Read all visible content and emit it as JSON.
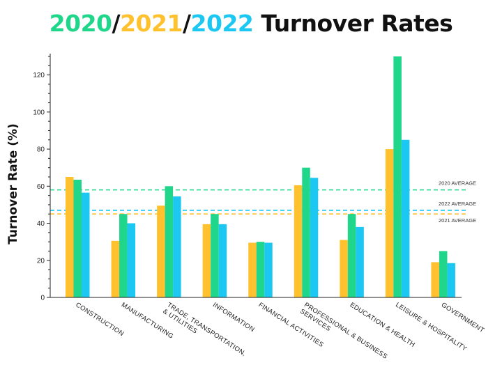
{
  "title": {
    "years": [
      {
        "text": "2020",
        "color": "#1FD68A"
      },
      {
        "text": "/",
        "color": "#111111"
      },
      {
        "text": "2021",
        "color": "#FFC12E"
      },
      {
        "text": "/",
        "color": "#111111"
      },
      {
        "text": "2022",
        "color": "#1CC8F2"
      }
    ],
    "rest": " Turnover Rates",
    "rest_color": "#111111"
  },
  "chart_data": {
    "type": "bar",
    "title": "2020/2021/2022 Turnover Rates",
    "ylabel": "Turnover Rate (%)",
    "xlabel": "",
    "ylim": [
      0,
      130
    ],
    "yticks": [
      0,
      20,
      40,
      60,
      80,
      100,
      120
    ],
    "grid": false,
    "legend": "none",
    "categories": [
      [
        "CONSTRUCTION"
      ],
      [
        "MANUFACTURING"
      ],
      [
        "TRADE, TRANSPORTATION,",
        "& UTILITIES"
      ],
      [
        "INFORMATION"
      ],
      [
        "FINANCIAL ACTIVITIES"
      ],
      [
        "PROFESSIONAL & BUSINESS",
        "SERVICES"
      ],
      [
        "EDUCATION & HEALTH"
      ],
      [
        "LEISURE & HOSPITALITY"
      ],
      [
        "GOVERNMENT"
      ]
    ],
    "series": [
      {
        "color": "#FFC12E",
        "values": [
          65,
          30.5,
          49.5,
          39.5,
          29.5,
          60.5,
          31,
          80,
          19
        ]
      },
      {
        "color": "#1FD68A",
        "values": [
          63.5,
          45,
          60,
          45,
          30,
          70,
          45,
          130,
          25
        ]
      },
      {
        "color": "#1CC8F2",
        "values": [
          56.5,
          40,
          54.5,
          39.5,
          29.5,
          64.5,
          38,
          85,
          18.5
        ]
      }
    ],
    "reference_lines": [
      {
        "label": "2020 AVERAGE",
        "value": 58,
        "color": "#1FD68A"
      },
      {
        "label": "2022 AVERAGE",
        "value": 47,
        "color": "#1CC8F2"
      },
      {
        "label": "2021 AVERAGE",
        "value": 45,
        "color": "#FFC12E"
      }
    ]
  }
}
